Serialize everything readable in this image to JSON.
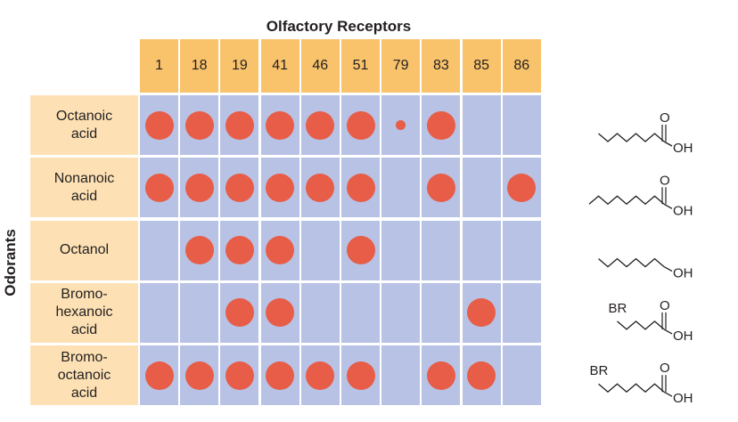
{
  "title": "Olfactory Receptors",
  "ylabel": "Odorants",
  "receptors": [
    "1",
    "18",
    "19",
    "41",
    "46",
    "51",
    "79",
    "83",
    "85",
    "86"
  ],
  "odorants": [
    {
      "name": "Octanoic\nacid",
      "responses": [
        1,
        1,
        1,
        1,
        1,
        1,
        0.35,
        1,
        0,
        0
      ],
      "structure": {
        "carbons": 8,
        "prefix": "",
        "oxygen": "O",
        "hydroxyl": "OH"
      }
    },
    {
      "name": "Nonanoic\nacid",
      "responses": [
        1,
        1,
        1,
        1,
        1,
        1,
        0,
        1,
        0,
        1
      ],
      "structure": {
        "carbons": 9,
        "prefix": "",
        "oxygen": "O",
        "hydroxyl": "OH"
      }
    },
    {
      "name": "Octanol",
      "responses": [
        0,
        1,
        1,
        1,
        0,
        1,
        0,
        0,
        0,
        0
      ],
      "structure": {
        "carbons": 8,
        "prefix": "",
        "oxygen": "",
        "hydroxyl": "OH"
      }
    },
    {
      "name": "Bromo-\nhexanoic\nacid",
      "responses": [
        0,
        0,
        1,
        1,
        0,
        0,
        0,
        0,
        1,
        0
      ],
      "structure": {
        "carbons": 6,
        "prefix": "BR",
        "oxygen": "O",
        "hydroxyl": "OH"
      }
    },
    {
      "name": "Bromo-\noctanoic\nacid",
      "responses": [
        1,
        1,
        1,
        1,
        1,
        1,
        0,
        1,
        1,
        0
      ],
      "structure": {
        "carbons": 8,
        "prefix": "BR",
        "oxygen": "O",
        "hydroxyl": "OH"
      }
    }
  ],
  "colors": {
    "receptor_header": "#f9c36b",
    "odorant_header": "#fde1b4",
    "grid_cell": "#b8c2e5",
    "response_dot": "#e75d47"
  }
}
